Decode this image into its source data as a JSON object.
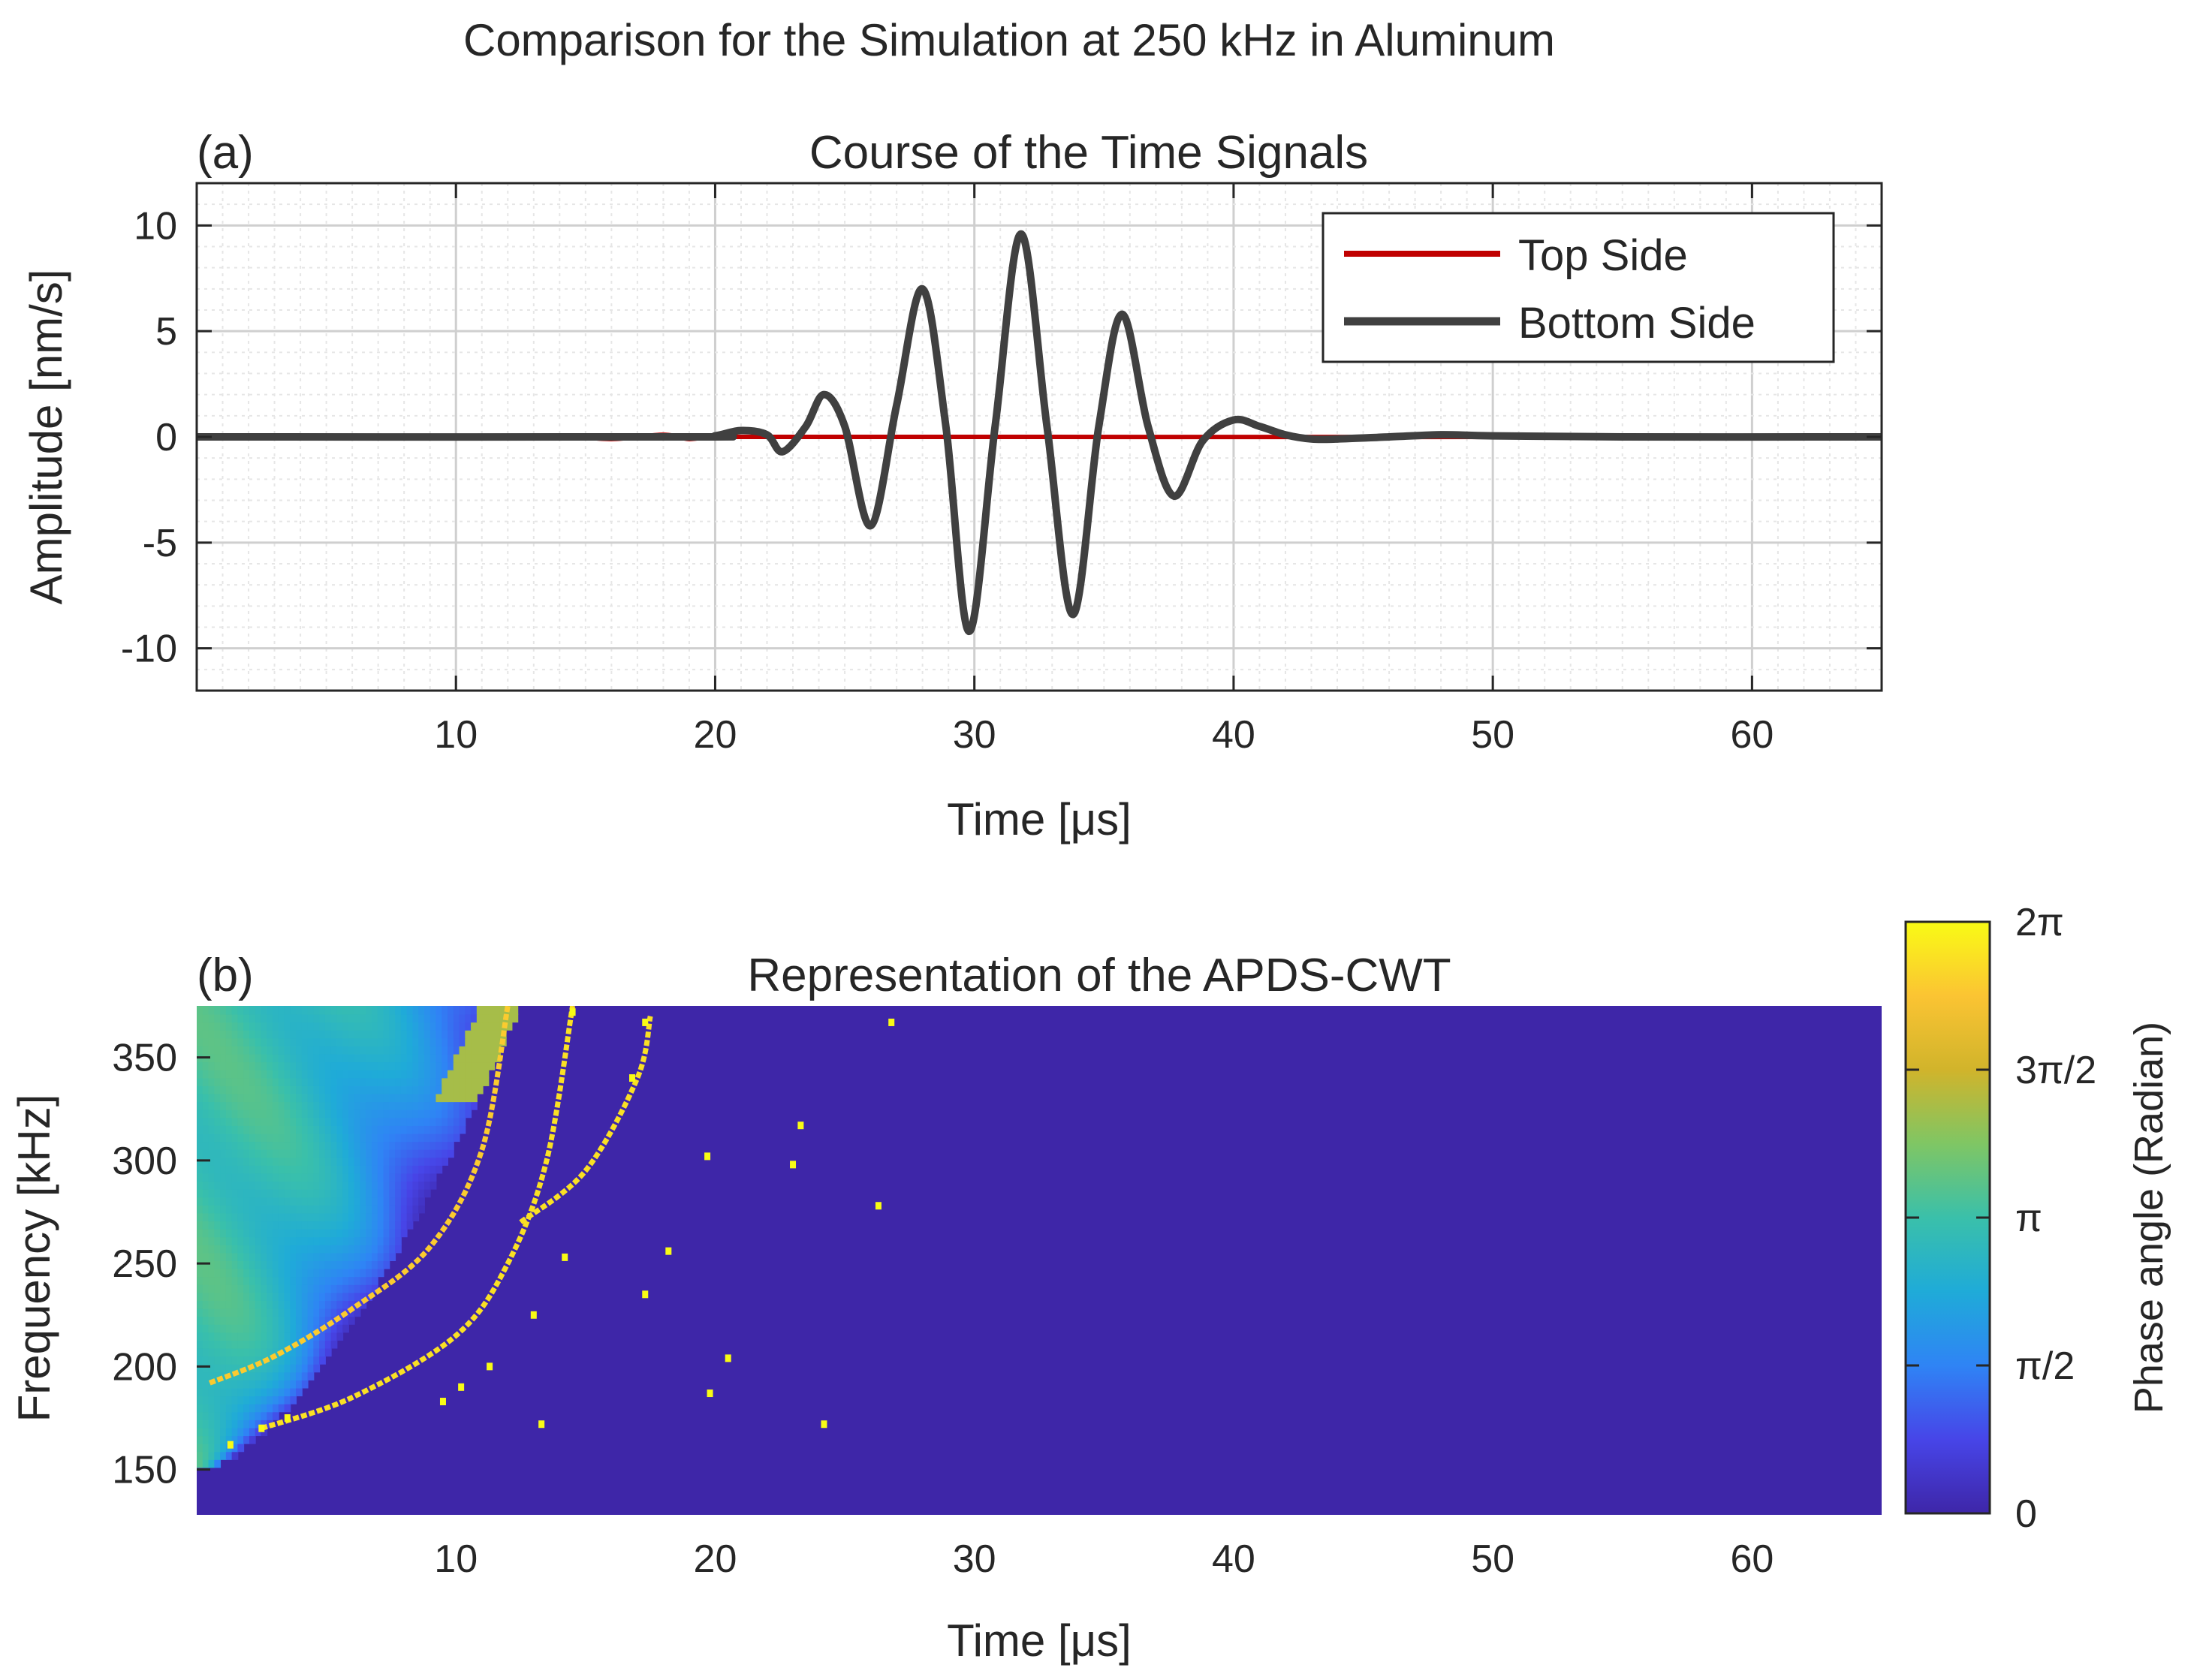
{
  "figure_title": "Comparison for the Simulation at 250 kHz in Aluminum",
  "colors": {
    "top_side": "#c00000",
    "bottom_side": "#404040",
    "background_map": "#3e26a8",
    "grid": "#d9d9d9"
  },
  "chart_data": [
    {
      "type": "line",
      "panel_label": "(a)",
      "title": "Course of the Time Signals",
      "xlabel": "Time [μs]",
      "ylabel": "Amplitude [nm/s]",
      "xlim": [
        0,
        65
      ],
      "ylim": [
        -12,
        12
      ],
      "xticks": [
        10,
        20,
        30,
        40,
        50,
        60
      ],
      "xtick_labels": [
        "10",
        "20",
        "30",
        "40",
        "50",
        "60"
      ],
      "yticks": [
        10,
        5,
        0,
        -5,
        -10
      ],
      "ytick_labels": [
        "10",
        "5",
        "0",
        "-5",
        "-10"
      ],
      "grid": true,
      "legend_position": "top-right",
      "series": [
        {
          "name": "Top Side",
          "x": [
            0,
            12,
            14,
            16,
            18,
            19,
            20,
            21,
            65
          ],
          "y": [
            0,
            0,
            0.05,
            -0.1,
            0.1,
            -0.1,
            0.05,
            0,
            0
          ]
        },
        {
          "name": "Bottom Side",
          "x": [
            0,
            19,
            20,
            21,
            22,
            22.6,
            23.5,
            24.2,
            25,
            26,
            27,
            28,
            28.9,
            29.8,
            30.8,
            31.8,
            32.8,
            33.8,
            34.8,
            35.7,
            36.7,
            37.7,
            38.8,
            40,
            41,
            42,
            43,
            44,
            46,
            48,
            50,
            55,
            65
          ],
          "y": [
            0,
            0,
            0.05,
            0.3,
            0.1,
            -0.7,
            0.5,
            2.0,
            0.5,
            -4.2,
            1.5,
            7.0,
            0.5,
            -9.2,
            0.5,
            9.6,
            0.5,
            -8.4,
            0.5,
            5.8,
            0.5,
            -2.8,
            -0.2,
            0.8,
            0.5,
            0.1,
            -0.1,
            -0.1,
            0.0,
            0.1,
            0.05,
            0.0,
            0.0
          ]
        }
      ]
    },
    {
      "type": "heatmap",
      "panel_label": "(b)",
      "title": "Representation of the APDS-CWT",
      "xlabel": "Time [μs]",
      "ylabel": "Frequency [kHz]",
      "xlim": [
        0,
        65
      ],
      "ylim": [
        128,
        375
      ],
      "xticks": [
        10,
        20,
        30,
        40,
        50,
        60
      ],
      "xtick_labels": [
        "10",
        "20",
        "30",
        "40",
        "50",
        "60"
      ],
      "yticks": [
        350,
        300,
        250,
        200,
        150
      ],
      "ytick_labels": [
        "350",
        "300",
        "250",
        "200",
        "150"
      ],
      "colorbar": {
        "label": "Phase angle (Radian)",
        "ticks": [
          0,
          1.5708,
          3.1416,
          4.7124,
          6.2832
        ],
        "tick_labels": [
          "0",
          "π/2",
          "π",
          "3π/2",
          "2π"
        ],
        "stops": [
          "#3e26a8",
          "#4745e8",
          "#2f84f5",
          "#1fabd8",
          "#3ac0aa",
          "#7fc664",
          "#d1b42b",
          "#fbc433",
          "#f9fb15"
        ]
      },
      "dispersion_bands": [
        {
          "name": "phase-wrap-yellow-1",
          "t": [
            0.5,
            3,
            6,
            9,
            11,
            12
          ],
          "f": [
            192,
            205,
            228,
            258,
            305,
            375
          ],
          "phase": 5.6
        },
        {
          "name": "phase-wrap-yellow-2",
          "t": [
            2.5,
            6,
            10,
            12,
            13.5,
            14.5
          ],
          "f": [
            170,
            185,
            215,
            250,
            300,
            375
          ],
          "phase": 5.9
        },
        {
          "name": "phase-wrap-yellow-3",
          "t": [
            12.5,
            15,
            17,
            17.5
          ],
          "f": [
            270,
            295,
            340,
            370
          ],
          "phase": 5.9
        }
      ],
      "scatter_points": [
        {
          "t": 1.3,
          "f": 162
        },
        {
          "t": 2.5,
          "f": 170
        },
        {
          "t": 3.5,
          "f": 175
        },
        {
          "t": 9.5,
          "f": 183
        },
        {
          "t": 10.2,
          "f": 190
        },
        {
          "t": 11.3,
          "f": 200
        },
        {
          "t": 13.0,
          "f": 225
        },
        {
          "t": 14.2,
          "f": 253
        },
        {
          "t": 13.3,
          "f": 172
        },
        {
          "t": 17.3,
          "f": 235
        },
        {
          "t": 18.2,
          "f": 256
        },
        {
          "t": 19.7,
          "f": 302
        },
        {
          "t": 19.8,
          "f": 187
        },
        {
          "t": 20.5,
          "f": 204
        },
        {
          "t": 23.0,
          "f": 298
        },
        {
          "t": 23.3,
          "f": 317
        },
        {
          "t": 24.2,
          "f": 172
        },
        {
          "t": 26.3,
          "f": 278
        },
        {
          "t": 26.8,
          "f": 367
        },
        {
          "t": 17.3,
          "f": 367
        },
        {
          "t": 16.8,
          "f": 340
        },
        {
          "t": 14.5,
          "f": 372
        }
      ]
    }
  ]
}
